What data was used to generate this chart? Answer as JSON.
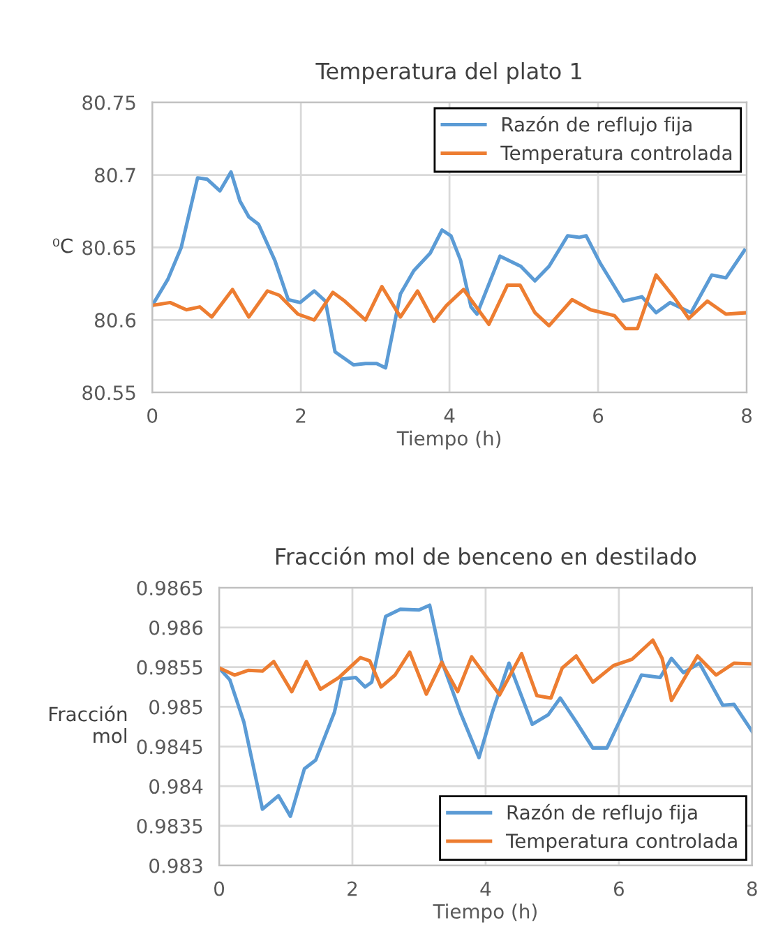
{
  "chart_data": [
    {
      "type": "line",
      "title": "Temperatura del plato 1",
      "xlabel": "Tiempo (h)",
      "ylabel": "⁰C",
      "xlim": [
        0,
        8
      ],
      "xticks": [
        0,
        2,
        4,
        6,
        8
      ],
      "ylim": [
        80.55,
        80.75
      ],
      "yticks": [
        80.55,
        80.6,
        80.65,
        80.7,
        80.75
      ],
      "grid": true,
      "legend": "top right",
      "series": [
        {
          "name": "Razón de reflujo fija",
          "color": "#5b9bd5",
          "x": [
            0,
            0.21,
            0.39,
            0.61,
            0.74,
            0.91,
            1.06,
            1.18,
            1.3,
            1.43,
            1.65,
            1.83,
            1.99,
            2.18,
            2.33,
            2.46,
            2.71,
            2.87,
            3.02,
            3.14,
            3.34,
            3.52,
            3.74,
            3.9,
            4.02,
            4.15,
            4.29,
            4.37,
            4.68,
            4.96,
            5.15,
            5.34,
            5.59,
            5.75,
            5.84,
            6.03,
            6.34,
            6.59,
            6.78,
            6.97,
            7.25,
            7.53,
            7.72,
            7.97
          ],
          "values": [
            80.61,
            80.628,
            80.65,
            80.698,
            80.697,
            80.689,
            80.702,
            80.682,
            80.671,
            80.666,
            80.641,
            80.614,
            80.612,
            80.62,
            80.613,
            80.578,
            80.569,
            80.57,
            80.57,
            80.567,
            80.618,
            80.634,
            80.646,
            80.662,
            80.658,
            80.641,
            80.609,
            80.604,
            80.644,
            80.637,
            80.627,
            80.637,
            80.658,
            80.657,
            80.658,
            80.639,
            80.613,
            80.616,
            80.605,
            80.612,
            80.605,
            80.631,
            80.629,
            80.648
          ]
        },
        {
          "name": "Temperatura controlada",
          "color": "#ed7d31",
          "x": [
            0,
            0.24,
            0.46,
            0.64,
            0.8,
            1.08,
            1.3,
            1.55,
            1.71,
            1.96,
            2.18,
            2.43,
            2.59,
            2.87,
            3.09,
            3.34,
            3.57,
            3.79,
            3.96,
            4.19,
            4.53,
            4.78,
            4.95,
            5.15,
            5.34,
            5.65,
            5.9,
            6.22,
            6.37,
            6.53,
            6.78,
            7.03,
            7.22,
            7.47,
            7.72,
            8.0
          ],
          "values": [
            80.61,
            80.612,
            80.607,
            80.609,
            80.602,
            80.621,
            80.602,
            80.62,
            80.617,
            80.604,
            80.6,
            80.619,
            80.613,
            80.6,
            80.623,
            80.602,
            80.62,
            80.599,
            80.61,
            80.621,
            80.597,
            80.624,
            80.624,
            80.605,
            80.596,
            80.614,
            80.607,
            80.603,
            80.594,
            80.594,
            80.631,
            80.615,
            80.601,
            80.613,
            80.604,
            80.605
          ]
        }
      ]
    },
    {
      "type": "line",
      "title": "Fracción mol de benceno en destilado",
      "xlabel": "Tiempo (h)",
      "ylabel": "Fracción\nmol",
      "xlim": [
        0,
        8
      ],
      "xticks": [
        0,
        2,
        4,
        6,
        8
      ],
      "ylim": [
        0.983,
        0.9865
      ],
      "yticks": [
        0.983,
        0.9835,
        0.984,
        0.9845,
        0.985,
        0.9855,
        0.986,
        0.9865
      ],
      "grid": true,
      "legend": "bottom right",
      "series": [
        {
          "name": "Razón de reflujo fija",
          "color": "#5b9bd5",
          "x": [
            0,
            0.16,
            0.37,
            0.65,
            0.89,
            1.07,
            1.28,
            1.45,
            1.73,
            1.84,
            2.05,
            2.19,
            2.29,
            2.5,
            2.72,
            3.0,
            3.16,
            3.34,
            3.62,
            3.9,
            4.1,
            4.35,
            4.7,
            4.94,
            5.12,
            5.36,
            5.61,
            5.82,
            6.09,
            6.34,
            6.62,
            6.79,
            6.97,
            7.21,
            7.56,
            7.73,
            8.0
          ],
          "values": [
            0.98549,
            0.98534,
            0.98481,
            0.98371,
            0.98388,
            0.98362,
            0.98422,
            0.98433,
            0.98493,
            0.98535,
            0.98537,
            0.98525,
            0.98531,
            0.98614,
            0.98623,
            0.98622,
            0.98628,
            0.98558,
            0.98493,
            0.98436,
            0.98493,
            0.98555,
            0.98478,
            0.9849,
            0.98511,
            0.98481,
            0.98448,
            0.98448,
            0.98496,
            0.9854,
            0.98537,
            0.98561,
            0.98543,
            0.98555,
            0.98502,
            0.98503,
            0.98469
          ]
        },
        {
          "name": "Temperatura controlada",
          "color": "#ed7d31",
          "x": [
            0,
            0.23,
            0.44,
            0.65,
            0.82,
            1.09,
            1.31,
            1.52,
            1.8,
            2.12,
            2.26,
            2.43,
            2.64,
            2.86,
            3.11,
            3.34,
            3.58,
            3.79,
            4.21,
            4.54,
            4.77,
            4.98,
            5.15,
            5.36,
            5.61,
            5.92,
            6.2,
            6.51,
            6.65,
            6.79,
            7.18,
            7.46,
            7.73,
            8.0
          ],
          "values": [
            0.98549,
            0.9854,
            0.98546,
            0.98545,
            0.98557,
            0.98519,
            0.98557,
            0.98522,
            0.98537,
            0.98562,
            0.98558,
            0.98525,
            0.9854,
            0.98569,
            0.98516,
            0.98556,
            0.98519,
            0.98563,
            0.98515,
            0.98567,
            0.98514,
            0.98511,
            0.98549,
            0.98564,
            0.98531,
            0.98552,
            0.9856,
            0.98584,
            0.98561,
            0.98508,
            0.98564,
            0.9854,
            0.98555,
            0.98554
          ]
        }
      ]
    }
  ]
}
